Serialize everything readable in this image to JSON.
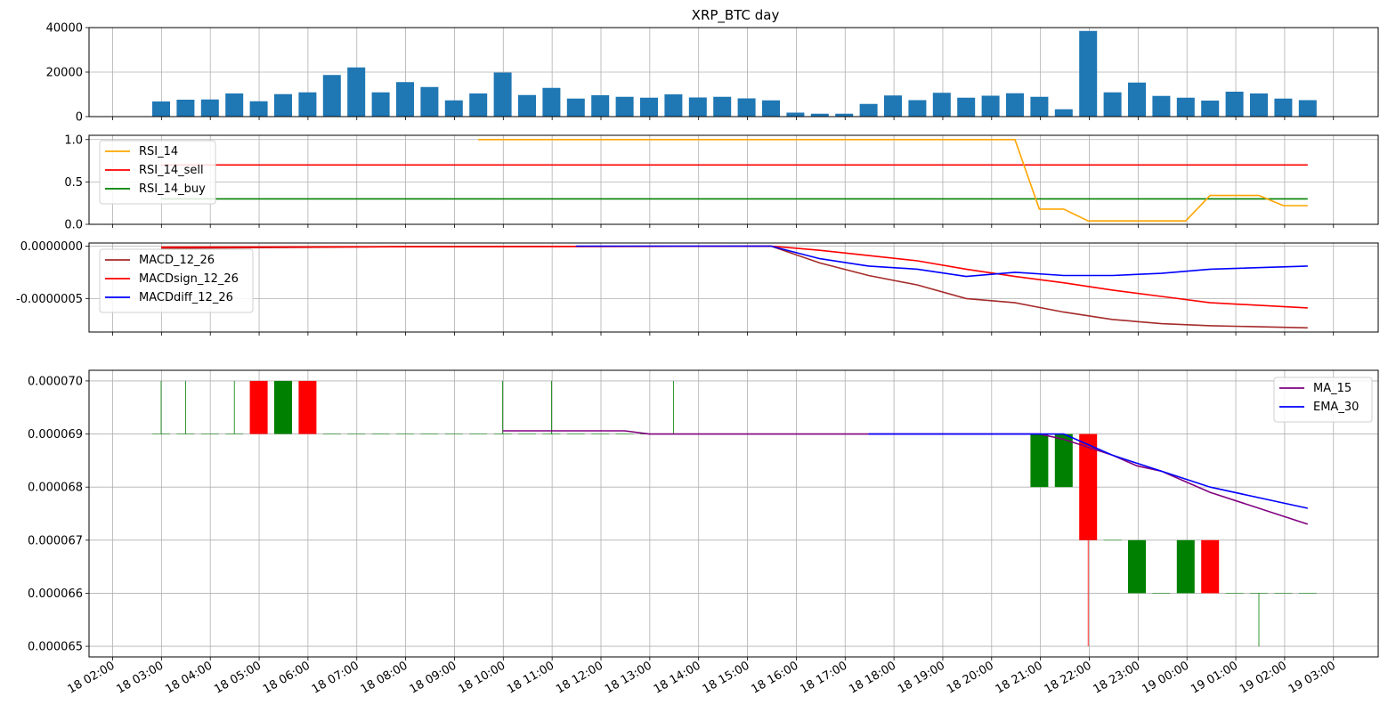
{
  "chart_data": {
    "title": "XRP_BTC  day",
    "colors": {
      "volume": "#1f77b4",
      "rsi": "#ffa500",
      "rsi_sell": "#ff0000",
      "rsi_buy": "#008000",
      "macd": "#a52a2a",
      "macd_sign": "#ff0000",
      "macd_diff": "#0000ff",
      "ma": "#800080",
      "ema": "#0000ff",
      "candle_up": "#008000",
      "candle_down": "#ff0000",
      "grid": "#b0b0b0"
    },
    "x_ticks": [
      "18 02:00",
      "18 03:00",
      "18 04:00",
      "18 05:00",
      "18 06:00",
      "18 07:00",
      "18 08:00",
      "18 09:00",
      "18 10:00",
      "18 11:00",
      "18 12:00",
      "18 13:00",
      "18 14:00",
      "18 15:00",
      "18 16:00",
      "18 17:00",
      "18 18:00",
      "18 19:00",
      "18 20:00",
      "18 21:00",
      "18 22:00",
      "18 23:00",
      "19 00:00",
      "19 01:00",
      "19 02:00",
      "19 03:00"
    ],
    "volume": {
      "type": "bar",
      "ylim": [
        0,
        40000
      ],
      "y_ticks": [
        "0",
        "20000",
        "40000"
      ],
      "values": [
        6800,
        7600,
        7700,
        10400,
        6900,
        10100,
        10900,
        18700,
        22100,
        10900,
        15500,
        13300,
        7300,
        10400,
        19800,
        9700,
        12900,
        8100,
        9600,
        8900,
        8500,
        10000,
        8600,
        8900,
        8200,
        7300,
        1800,
        1300,
        1300,
        5700,
        9500,
        7400,
        10700,
        8500,
        9400,
        10500,
        8900,
        3300,
        38500,
        10900,
        15300,
        9300,
        8500,
        7200,
        11200,
        10400,
        8100,
        7400
      ]
    },
    "rsi": {
      "type": "line",
      "ylim": [
        0,
        1.05
      ],
      "y_ticks": [
        "0.0",
        "0.5",
        "1.0"
      ],
      "legend": [
        "RSI_14",
        "RSI_14_sell",
        "RSI_14_buy"
      ],
      "rsi_start_index": 13,
      "rsi_values": [
        1,
        1,
        1,
        1,
        1,
        1,
        1,
        1,
        1,
        1,
        1,
        1,
        1,
        1,
        1,
        1,
        1,
        1,
        1,
        1,
        1,
        1,
        1,
        0.18,
        0.18,
        0.04,
        0.04,
        0.04,
        0.04,
        0.04,
        0.34,
        0.34,
        0.34,
        0.22,
        0.22
      ],
      "sell_level": 0.7,
      "buy_level": 0.3
    },
    "macd": {
      "type": "line",
      "ylim": [
        -8.2e-07,
        3e-08
      ],
      "y_ticks": [
        "0.0000000",
        "-0.0000005"
      ],
      "legend": [
        "MACD_12_26",
        "MACDsign_12_26",
        "MACDdiff_12_26"
      ],
      "macd_points": [
        [
          0,
          -2e-08
        ],
        [
          10,
          -5e-09
        ],
        [
          25,
          0
        ],
        [
          27,
          -1.6e-07
        ],
        [
          29,
          -2.8e-07
        ],
        [
          31,
          -3.7e-07
        ],
        [
          33,
          -5e-07
        ],
        [
          35,
          -5.4e-07
        ],
        [
          37,
          -6.3e-07
        ],
        [
          39,
          -7e-07
        ],
        [
          41,
          -7.4e-07
        ],
        [
          43,
          -7.6e-07
        ],
        [
          47,
          -7.8e-07
        ]
      ],
      "sign_points": [
        [
          0,
          -1e-08
        ],
        [
          25,
          0
        ],
        [
          27,
          -4e-08
        ],
        [
          29,
          -9e-08
        ],
        [
          31,
          -1.4e-07
        ],
        [
          33,
          -2.2e-07
        ],
        [
          35,
          -2.9e-07
        ],
        [
          37,
          -3.5e-07
        ],
        [
          39,
          -4.2e-07
        ],
        [
          41,
          -4.8e-07
        ],
        [
          43,
          -5.4e-07
        ],
        [
          47,
          -5.9e-07
        ]
      ],
      "diff_points": [
        [
          17,
          0
        ],
        [
          25,
          0
        ],
        [
          27,
          -1.2e-07
        ],
        [
          29,
          -1.9e-07
        ],
        [
          31,
          -2.2e-07
        ],
        [
          33,
          -2.9e-07
        ],
        [
          35,
          -2.5e-07
        ],
        [
          37,
          -2.8e-07
        ],
        [
          39,
          -2.8e-07
        ],
        [
          41,
          -2.6e-07
        ],
        [
          43,
          -2.2e-07
        ],
        [
          47,
          -1.9e-07
        ]
      ]
    },
    "price": {
      "type": "candlestick",
      "ylim": [
        6.48e-05,
        7.02e-05
      ],
      "y_ticks": [
        "0.000065",
        "0.000066",
        "0.000067",
        "0.000068",
        "0.000069",
        "0.000070"
      ],
      "legend": [
        "MA_15",
        "EMA_30"
      ],
      "candles": [
        [
          69,
          70,
          69,
          69
        ],
        [
          69,
          70,
          69,
          69
        ],
        [
          69,
          69,
          69,
          69
        ],
        [
          69,
          70,
          69,
          69
        ],
        [
          70,
          70,
          69,
          69
        ],
        [
          69,
          70,
          69,
          70
        ],
        [
          70,
          70,
          69,
          69
        ],
        [
          69,
          69,
          69,
          69
        ],
        [
          69,
          69,
          69,
          69
        ],
        [
          69,
          69,
          69,
          69
        ],
        [
          69,
          69,
          69,
          69
        ],
        [
          69,
          69,
          69,
          69
        ],
        [
          69,
          69,
          69,
          69
        ],
        [
          69,
          69,
          69,
          69
        ],
        [
          69,
          70,
          69,
          69
        ],
        [
          69,
          69,
          69,
          69
        ],
        [
          69,
          70,
          69,
          69
        ],
        [
          69,
          69,
          69,
          69
        ],
        [
          69,
          69,
          69,
          69
        ],
        [
          69,
          69,
          69,
          69
        ],
        [
          69,
          69,
          69,
          69
        ],
        [
          69,
          70,
          69,
          69
        ],
        [
          69,
          69,
          69,
          69
        ],
        [
          69,
          69,
          69,
          69
        ],
        [
          69,
          69,
          69,
          69
        ],
        [
          69,
          69,
          69,
          69
        ],
        [
          69,
          69,
          69,
          69
        ],
        [
          69,
          69,
          69,
          69
        ],
        [
          69,
          69,
          69,
          69
        ],
        [
          69,
          69,
          69,
          69
        ],
        [
          69,
          69,
          69,
          69
        ],
        [
          69,
          69,
          69,
          69
        ],
        [
          69,
          69,
          69,
          69
        ],
        [
          69,
          69,
          69,
          69
        ],
        [
          69,
          69,
          69,
          69
        ],
        [
          69,
          69,
          69,
          69
        ],
        [
          68,
          69,
          68,
          69
        ],
        [
          68,
          69,
          68,
          69
        ],
        [
          69,
          69,
          65,
          67
        ],
        [
          67,
          67,
          67,
          67
        ],
        [
          66,
          67,
          66,
          67
        ],
        [
          66,
          66,
          66,
          66
        ],
        [
          66,
          67,
          66,
          67
        ],
        [
          67,
          67,
          66,
          66
        ],
        [
          66,
          66,
          66,
          66
        ],
        [
          66,
          66,
          65,
          66
        ],
        [
          66,
          66,
          66,
          66
        ],
        [
          66,
          66,
          66,
          66
        ]
      ],
      "ma_points": [
        [
          14,
          6.906e-05
        ],
        [
          19,
          6.906e-05
        ],
        [
          20,
          6.9e-05
        ],
        [
          36,
          6.9e-05
        ],
        [
          37,
          6.89e-05
        ],
        [
          39,
          6.86e-05
        ],
        [
          40,
          6.84e-05
        ],
        [
          41,
          6.83e-05
        ],
        [
          43,
          6.79e-05
        ],
        [
          47,
          6.73e-05
        ]
      ],
      "ema_points": [
        [
          29,
          6.9e-05
        ],
        [
          37,
          6.9e-05
        ],
        [
          39,
          6.86e-05
        ],
        [
          40,
          6.845e-05
        ],
        [
          41,
          6.83e-05
        ],
        [
          43,
          6.8e-05
        ],
        [
          47,
          6.76e-05
        ]
      ]
    }
  }
}
